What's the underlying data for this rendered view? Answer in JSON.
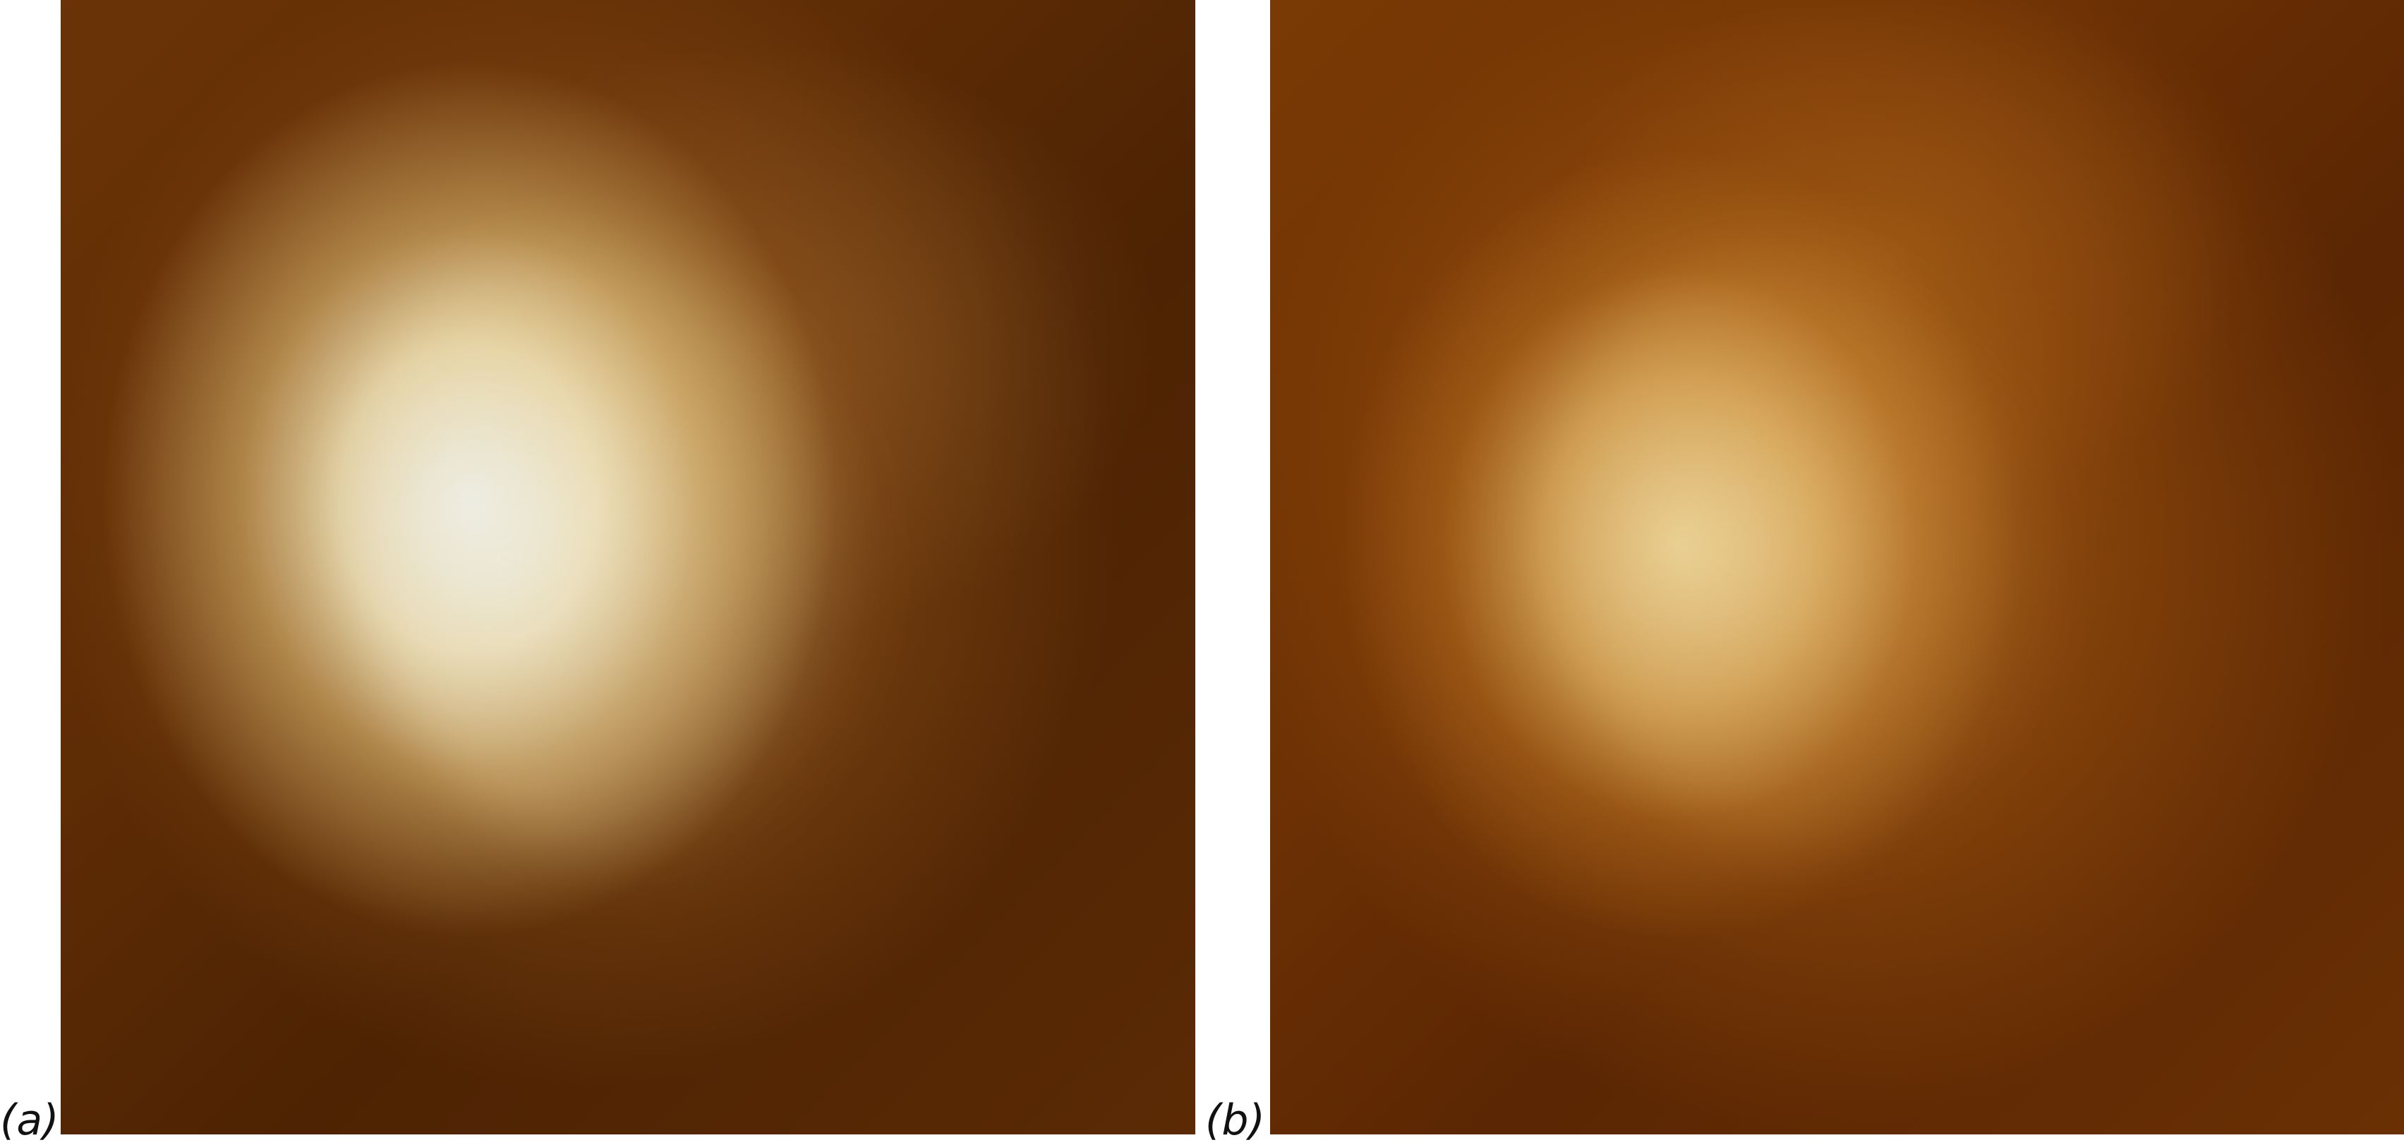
{
  "figure": {
    "panels": [
      {
        "label": "(a)"
      },
      {
        "label": "(b)"
      }
    ]
  },
  "colors": {
    "background": "#ffffff",
    "dark_brown": "#5e2c05",
    "bright_disk_a": "#ebf0ee",
    "bright_disk_b": "#f0dca0"
  }
}
